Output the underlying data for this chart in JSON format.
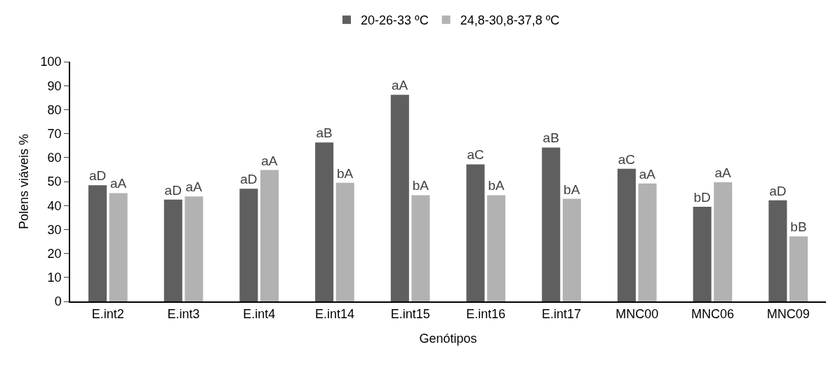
{
  "chart_data": {
    "type": "bar",
    "xlabel": "Genótipos",
    "ylabel": "Polens viáveis %",
    "categories": [
      "E.int2",
      "E.int3",
      "E.int4",
      "E.int14",
      "E.int15",
      "E.int16",
      "E.int17",
      "MNC00",
      "MNC06",
      "MNC09"
    ],
    "series": [
      {
        "name": "20-26-33 ºC",
        "color": "#5f5f5f",
        "values": [
          48.5,
          42.5,
          47,
          66.3,
          86.2,
          57.2,
          64.2,
          55.3,
          39.5,
          42.2
        ],
        "value_labels": [
          "aD",
          "aD",
          "aD",
          "aB",
          "aA",
          "aC",
          "aB",
          "aC",
          "bD",
          "aD"
        ]
      },
      {
        "name": "24,8-30,8-37,8 ºC",
        "color": "#b2b2b2",
        "values": [
          45.2,
          43.8,
          54.8,
          49.5,
          44.3,
          44.3,
          42.8,
          49.2,
          49.7,
          27.1
        ],
        "value_labels": [
          "aA",
          "aA",
          "aA",
          "bA",
          "bA",
          "bA",
          "bA",
          "aA",
          "aA",
          "bB"
        ]
      }
    ],
    "ylim": [
      0,
      100
    ],
    "yticks": [
      0,
      10,
      20,
      30,
      40,
      50,
      60,
      70,
      80,
      90,
      100
    ],
    "grid": false,
    "legend": "top"
  }
}
